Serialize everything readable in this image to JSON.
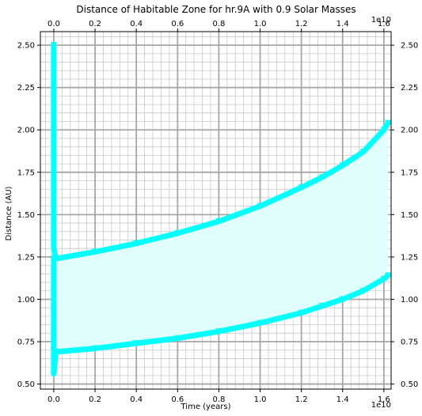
{
  "chart_data": {
    "type": "line",
    "title": "Distance of Habitable Zone for hr.9A with 0.9 Solar Masses",
    "xlabel": "Time (years)",
    "ylabel": "Distance (AU)",
    "x_offset_label": "1e10",
    "x_offset_label_top": "1e10",
    "xlim": [
      -0.065,
      1.635
    ],
    "ylim": [
      0.47,
      2.58
    ],
    "x_scale_note": "x values in units of 1e10 years",
    "x_ticks": [
      0.0,
      0.2,
      0.4,
      0.6,
      0.8,
      1.0,
      1.2,
      1.4,
      1.6
    ],
    "x_tick_labels": [
      "0.0",
      "0.2",
      "0.4",
      "0.6",
      "0.8",
      "1.0",
      "1.2",
      "1.4",
      "1.6"
    ],
    "y_ticks": [
      0.5,
      0.75,
      1.0,
      1.25,
      1.5,
      1.75,
      2.0,
      2.25,
      2.5
    ],
    "y_tick_labels": [
      "0.50",
      "0.75",
      "1.00",
      "1.25",
      "1.50",
      "1.75",
      "2.00",
      "2.25",
      "2.50"
    ],
    "grid": true,
    "minor_grid": true,
    "series": [
      {
        "color": "#00ffff",
        "x": [
          0.0,
          0.0,
          0.0,
          0.0,
          0.0,
          0.0,
          0.0,
          0.0,
          0.0,
          0.0,
          0.0,
          0.0,
          0.0,
          0.0,
          0.0,
          0.0,
          0.0,
          0.0,
          0.0,
          0.0,
          0.0,
          0.0,
          0.0,
          0.0,
          0.0,
          0.01,
          0.2,
          0.4,
          0.6,
          0.8,
          1.0,
          1.2,
          1.3,
          1.4,
          1.5,
          1.6,
          1.62
        ],
        "y": [
          2.5,
          2.45,
          2.4,
          2.35,
          2.3,
          2.25,
          2.2,
          2.15,
          2.1,
          2.05,
          2.0,
          1.95,
          1.9,
          1.85,
          1.8,
          1.75,
          1.7,
          1.65,
          1.6,
          1.55,
          1.5,
          1.45,
          1.4,
          1.35,
          1.3,
          1.24,
          1.28,
          1.33,
          1.39,
          1.46,
          1.55,
          1.66,
          1.72,
          1.79,
          1.87,
          2.0,
          2.04
        ]
      },
      {
        "color": "#00ffff",
        "x": [
          0.0,
          0.0,
          0.0,
          0.0,
          0.0,
          0.0,
          0.0,
          0.0,
          0.0,
          0.0,
          0.01,
          0.2,
          0.4,
          0.6,
          0.8,
          1.0,
          1.2,
          1.3,
          1.4,
          1.5,
          1.6,
          1.62
        ],
        "y": [
          1.24,
          1.15,
          1.05,
          0.95,
          0.85,
          0.8,
          0.75,
          0.7,
          0.65,
          0.56,
          0.69,
          0.71,
          0.74,
          0.77,
          0.81,
          0.86,
          0.92,
          0.96,
          1.0,
          1.05,
          1.12,
          1.14
        ]
      }
    ],
    "fill_between": {
      "color": "#e0fffc",
      "x": [
        0.01,
        0.2,
        0.4,
        0.6,
        0.8,
        1.0,
        1.2,
        1.3,
        1.4,
        1.5,
        1.6,
        1.62
      ],
      "y_low": [
        0.69,
        0.71,
        0.74,
        0.77,
        0.81,
        0.86,
        0.92,
        0.96,
        1.0,
        1.05,
        1.12,
        1.14
      ],
      "y_high": [
        1.24,
        1.28,
        1.33,
        1.39,
        1.46,
        1.55,
        1.66,
        1.72,
        1.79,
        1.87,
        2.0,
        2.04
      ]
    }
  }
}
